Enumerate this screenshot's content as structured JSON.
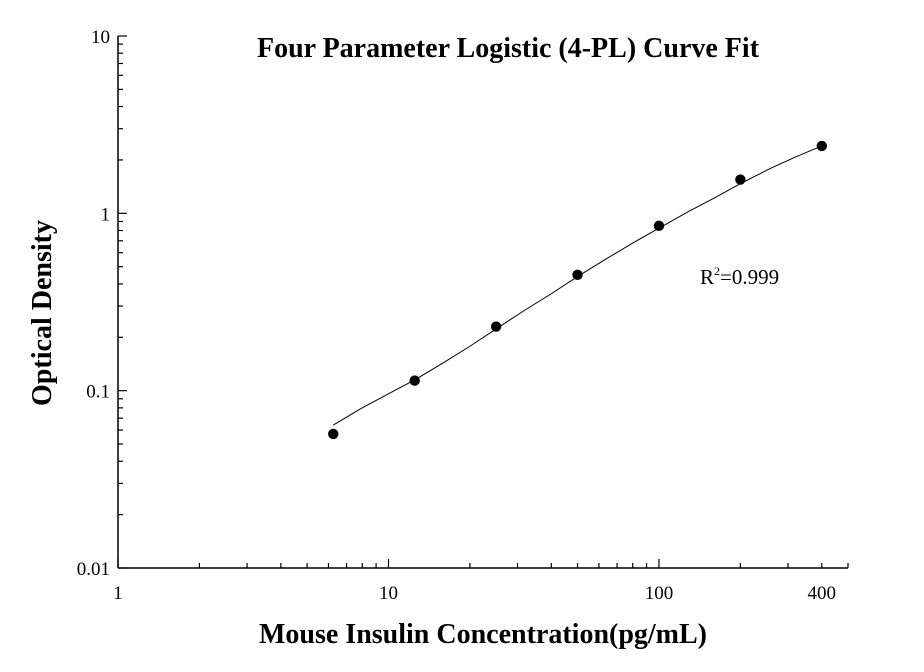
{
  "chart_data": {
    "type": "scatter",
    "title": "Four Parameter Logistic (4-PL) Curve Fit",
    "xlabel": "Mouse Insulin Concentration(pg/mL)",
    "ylabel": "Optical Density",
    "xscale": "log",
    "yscale": "log",
    "xlim": [
      1,
      500
    ],
    "ylim": [
      0.01,
      10
    ],
    "xticks": [
      {
        "value": 1,
        "label": "1"
      },
      {
        "value": 10,
        "label": "10"
      },
      {
        "value": 100,
        "label": "100"
      },
      {
        "value": 400,
        "label": "400"
      }
    ],
    "yticks": [
      {
        "value": 0.01,
        "label": "0.01"
      },
      {
        "value": 0.1,
        "label": "0.1"
      },
      {
        "value": 1,
        "label": "1"
      },
      {
        "value": 10,
        "label": "10"
      }
    ],
    "grid": false,
    "legend": "none",
    "series": [
      {
        "x": [
          6.25,
          12.5,
          25,
          50,
          100,
          200,
          400
        ],
        "y": [
          0.057,
          0.114,
          0.23,
          0.45,
          0.85,
          1.55,
          2.4
        ]
      }
    ],
    "fit_curve": {
      "x": [
        6.25,
        8,
        10,
        12.5,
        16,
        20,
        25,
        32,
        40,
        50,
        64,
        80,
        100,
        128,
        160,
        200,
        256,
        320,
        400
      ],
      "y": [
        0.064,
        0.08,
        0.096,
        0.115,
        0.144,
        0.178,
        0.223,
        0.285,
        0.352,
        0.44,
        0.555,
        0.68,
        0.825,
        1.02,
        1.22,
        1.47,
        1.78,
        2.08,
        2.4
      ]
    },
    "annotation": {
      "base": "R",
      "sup": "2",
      "rest": "=0.999"
    }
  }
}
